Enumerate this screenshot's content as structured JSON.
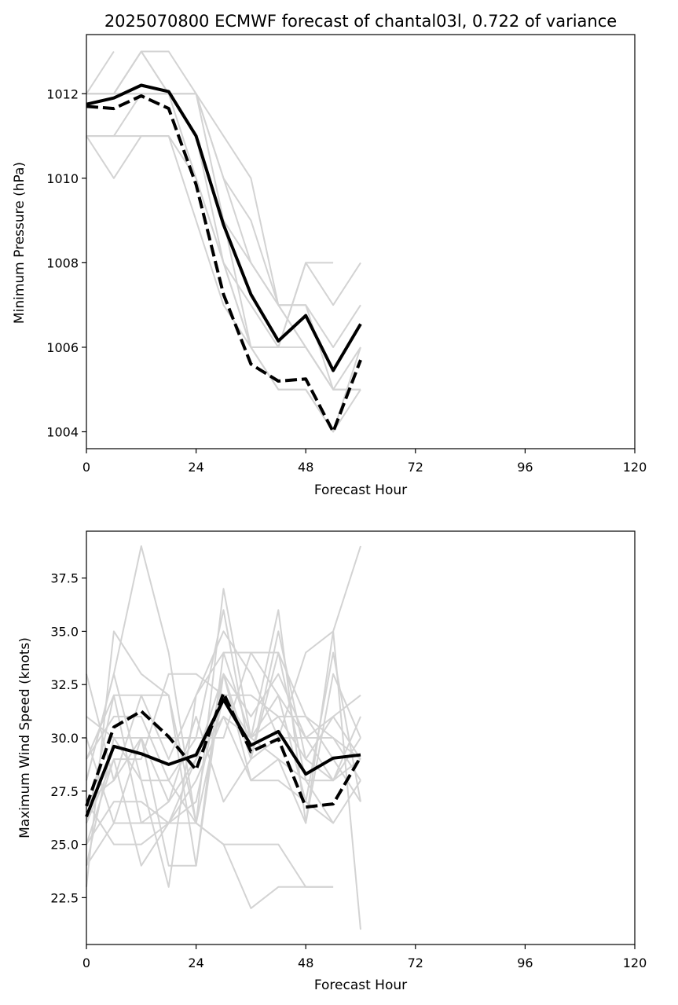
{
  "chart_data": [
    {
      "type": "line",
      "title": "2025070800 ECMWF forecast of chantal03l, 0.722 of variance",
      "xlabel": "Forecast Hour",
      "ylabel": "Minimum Pressure (hPa)",
      "xlim": [
        0,
        120
      ],
      "ylim": [
        1003.6,
        1013.4
      ],
      "xticks": [
        0,
        24,
        48,
        72,
        96,
        120
      ],
      "yticks": [
        1004,
        1006,
        1008,
        1010,
        1012
      ],
      "grid": false,
      "legend": "none",
      "x": [
        0,
        6,
        12,
        18,
        24,
        30,
        36,
        42,
        48,
        54,
        60
      ],
      "ensemble_color": "#d3d3d3",
      "mean_color": "#000000",
      "ensemble_members": [
        [
          1012,
          1013,
          null,
          null,
          null,
          null,
          null,
          null,
          null,
          null,
          null
        ],
        [
          1011,
          1011,
          1012,
          1012,
          1012,
          1011,
          1010,
          1007,
          1007,
          1005,
          1005
        ],
        [
          1012,
          1012,
          1013,
          1013,
          1012,
          1010,
          1009,
          1007,
          1006,
          1005,
          1005
        ],
        [
          1012,
          1012,
          1012,
          1012,
          1012,
          1009,
          1008,
          1007,
          1006,
          1005,
          1006
        ],
        [
          1011,
          1010,
          1011,
          1011,
          1010,
          1008,
          1007,
          1006,
          1008,
          1008,
          null
        ],
        [
          1011,
          1011,
          1011,
          1011,
          1009,
          1007,
          1006,
          1006,
          1006,
          1005,
          1005
        ],
        [
          1012,
          1012,
          1013,
          1012,
          1011,
          1009,
          1006,
          1005,
          1005,
          1004,
          1006
        ],
        [
          1012,
          1012,
          1012,
          1012,
          1011,
          1008,
          1006,
          1005,
          1005,
          1004,
          1005
        ],
        [
          1012,
          1012,
          1012,
          1012,
          1010,
          1008,
          1006,
          1006,
          1008,
          1007,
          1008
        ],
        [
          1012,
          1012,
          1013,
          1012,
          1012,
          1010,
          1008,
          1007,
          1007,
          1006,
          1007
        ]
      ],
      "series": [
        {
          "values": [
            1011.75,
            1011.9,
            1012.2,
            1012.05,
            1011.0,
            1008.9,
            1007.25,
            1006.15,
            1006.75,
            1005.45,
            1006.55
          ],
          "style": "solid"
        },
        {
          "values": [
            1011.7,
            1011.65,
            1011.95,
            1011.65,
            1009.85,
            1007.25,
            1005.6,
            1005.2,
            1005.25,
            1004.0,
            1005.7
          ],
          "style": "dashed"
        }
      ]
    },
    {
      "type": "line",
      "title": "",
      "xlabel": "Forecast Hour",
      "ylabel": "Maximum Wind Speed (knots)",
      "xlim": [
        0,
        120
      ],
      "ylim": [
        20.3,
        39.7
      ],
      "xticks": [
        0,
        24,
        48,
        72,
        96,
        120
      ],
      "yticks": [
        22.5,
        25.0,
        27.5,
        30.0,
        32.5,
        35.0,
        37.5
      ],
      "ytick_labels": [
        "22.5",
        "25.0",
        "27.5",
        "30.0",
        "32.5",
        "35.0",
        "37.5"
      ],
      "grid": false,
      "legend": "none",
      "x": [
        0,
        6,
        12,
        18,
        24,
        30,
        36,
        42,
        48,
        54,
        60
      ],
      "ensemble_color": "#d3d3d3",
      "mean_color": "#000000",
      "ensemble_members": [
        [
          23,
          35,
          33,
          32,
          26,
          37,
          30,
          36,
          26,
          35,
          39
        ],
        [
          28,
          33,
          39,
          34,
          26,
          25,
          22,
          23,
          23,
          23,
          null
        ],
        [
          24,
          30,
          28,
          23,
          32,
          35,
          33,
          30,
          34,
          35,
          21
        ],
        [
          26,
          29,
          29,
          33,
          33,
          32,
          32,
          31,
          31,
          29,
          27
        ],
        [
          29,
          31,
          31,
          28,
          30,
          36,
          29,
          35,
          29,
          31,
          32
        ],
        [
          27,
          28,
          32,
          32,
          24,
          34,
          30,
          32,
          30,
          30,
          28
        ],
        [
          33,
          28,
          30,
          30,
          30,
          30,
          34,
          32,
          27,
          26,
          null
        ],
        [
          26,
          32,
          26,
          26,
          27,
          33,
          29,
          34,
          28,
          26,
          28
        ],
        [
          24,
          26,
          30,
          24,
          24,
          33,
          28,
          28,
          27,
          34,
          27
        ],
        [
          31,
          30,
          30,
          27,
          31,
          27,
          29,
          30,
          30,
          28,
          31
        ],
        [
          25,
          27,
          27,
          26,
          28,
          31,
          28,
          29,
          28,
          28,
          29
        ],
        [
          28,
          33,
          28,
          28,
          26,
          32,
          30,
          29,
          26,
          33,
          30
        ],
        [
          27,
          25,
          25,
          26,
          26,
          25,
          25,
          25,
          23,
          23,
          null
        ],
        [
          29,
          32,
          32,
          29,
          32,
          34,
          34,
          34,
          31,
          30,
          29
        ],
        [
          25,
          29,
          24,
          26,
          29,
          33,
          31,
          33,
          30,
          31,
          29
        ],
        [
          30,
          26,
          26,
          27,
          29,
          31,
          30,
          31,
          29,
          28,
          30
        ]
      ],
      "series": [
        {
          "values": [
            26.3,
            29.6,
            29.25,
            28.75,
            29.2,
            31.8,
            29.65,
            30.3,
            28.3,
            29.05,
            29.2
          ],
          "style": "solid"
        },
        {
          "values": [
            26.8,
            30.5,
            31.25,
            30.05,
            28.5,
            32.1,
            29.35,
            29.95,
            26.75,
            26.9,
            29.1
          ],
          "style": "dashed"
        }
      ]
    }
  ]
}
